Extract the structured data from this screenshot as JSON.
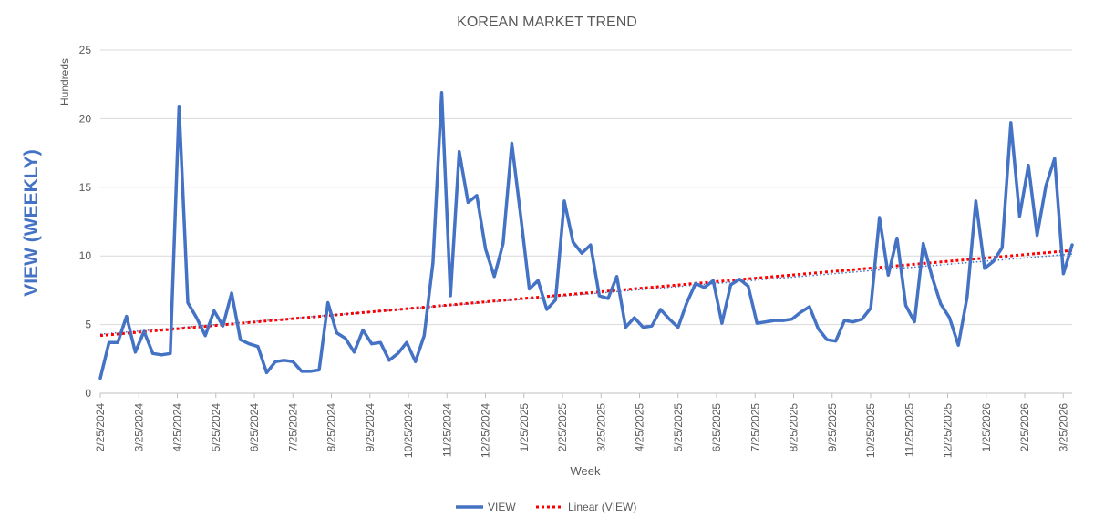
{
  "chart_data": {
    "type": "line",
    "title": "KOREAN MARKET TREND",
    "xlabel": "Week",
    "ylabel": "VIEW (WEEKLY)",
    "y_unit_label": "Hundreds",
    "ylim": [
      0,
      25
    ],
    "yticks": [
      0,
      5,
      10,
      15,
      20,
      25
    ],
    "grid": true,
    "legend_position": "bottom",
    "x_tick_labels": [
      "2/25/2024",
      "3/25/2024",
      "4/25/2024",
      "5/25/2024",
      "6/25/2024",
      "7/25/2024",
      "8/25/2024",
      "9/25/2024",
      "10/25/2024",
      "11/25/2024",
      "12/25/2024",
      "1/25/2025",
      "2/25/2025",
      "3/25/2025",
      "4/25/2025",
      "5/25/2025",
      "6/25/2025",
      "7/25/2025",
      "8/25/2025",
      "9/25/2025",
      "10/25/2025",
      "11/25/2025",
      "12/25/2025",
      "1/25/2026",
      "2/25/2026",
      "3/25/2026"
    ],
    "series": [
      {
        "name": "VIEW",
        "color": "#4472c4",
        "values": [
          1.1,
          3.7,
          3.7,
          5.6,
          3.0,
          4.5,
          2.9,
          2.8,
          2.9,
          20.9,
          6.6,
          5.5,
          4.2,
          6.0,
          4.9,
          7.3,
          3.9,
          3.6,
          3.4,
          1.5,
          2.3,
          2.4,
          2.3,
          1.6,
          1.6,
          1.7,
          6.6,
          4.4,
          4.0,
          3.0,
          4.6,
          3.6,
          3.7,
          2.4,
          2.9,
          3.7,
          2.3,
          4.2,
          9.5,
          21.9,
          7.1,
          17.6,
          13.9,
          14.4,
          10.5,
          8.5,
          10.9,
          18.2,
          13.0,
          7.6,
          8.2,
          6.1,
          6.8,
          14.0,
          11.0,
          10.2,
          10.8,
          7.1,
          6.9,
          8.5,
          4.8,
          5.5,
          4.8,
          4.9,
          6.1,
          5.4,
          4.8,
          6.6,
          8.0,
          7.7,
          8.2,
          5.1,
          7.9,
          8.3,
          7.8,
          5.1,
          5.2,
          5.3,
          5.3,
          5.4,
          5.9,
          6.3,
          4.7,
          3.9,
          3.8,
          5.3,
          5.2,
          5.4,
          6.2,
          12.8,
          8.6,
          11.3,
          6.4,
          5.2,
          10.9,
          8.5,
          6.5,
          5.5,
          3.5,
          7.0,
          14.0,
          9.1,
          9.6,
          10.6,
          19.7,
          12.9,
          16.6,
          11.5,
          15.1,
          17.1,
          8.7,
          10.8
        ]
      },
      {
        "name": "Linear (VIEW)",
        "color": "#ff0000",
        "style": "dotted",
        "trendline": "linear",
        "values": [
          4.2,
          10.4
        ]
      }
    ]
  }
}
